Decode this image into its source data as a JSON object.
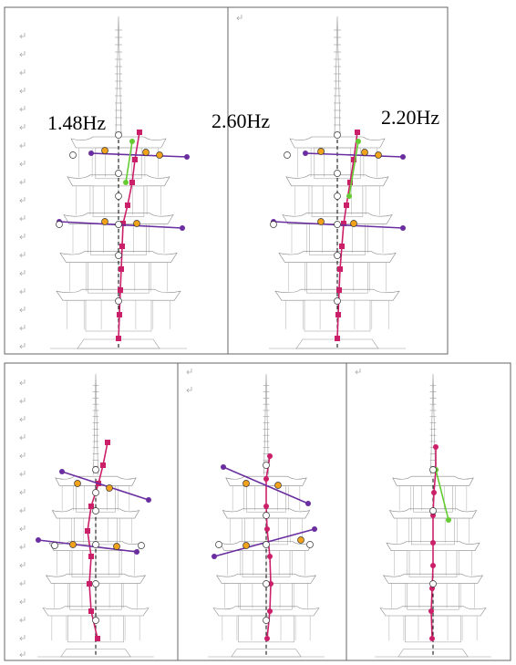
{
  "figure": {
    "labels": [
      "1.48Hz",
      "2.60Hz",
      "2.20Hz"
    ]
  }
}
